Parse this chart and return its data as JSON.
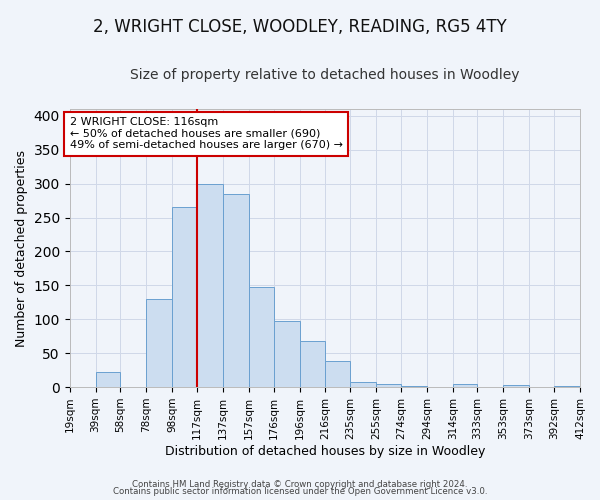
{
  "title": "2, WRIGHT CLOSE, WOODLEY, READING, RG5 4TY",
  "subtitle": "Size of property relative to detached houses in Woodley",
  "xlabel": "Distribution of detached houses by size in Woodley",
  "ylabel": "Number of detached properties",
  "bar_edges": [
    19,
    39,
    58,
    78,
    98,
    117,
    137,
    157,
    176,
    196,
    216,
    235,
    255,
    274,
    294,
    314,
    333,
    353,
    373,
    392,
    412
  ],
  "bar_heights": [
    0,
    22,
    0,
    130,
    265,
    300,
    285,
    147,
    98,
    68,
    38,
    8,
    5,
    2,
    0,
    4,
    0,
    3,
    0,
    1
  ],
  "tick_labels": [
    "19sqm",
    "39sqm",
    "58sqm",
    "78sqm",
    "98sqm",
    "117sqm",
    "137sqm",
    "157sqm",
    "176sqm",
    "196sqm",
    "216sqm",
    "235sqm",
    "255sqm",
    "274sqm",
    "294sqm",
    "314sqm",
    "333sqm",
    "353sqm",
    "373sqm",
    "392sqm",
    "412sqm"
  ],
  "bar_facecolor": "#ccddf0",
  "bar_edgecolor": "#6aa0d0",
  "grid_color": "#d0d8e8",
  "background_color": "#f0f4fa",
  "vline_x": 117,
  "vline_color": "#cc0000",
  "vline_lw": 1.5,
  "annotation_text": "2 WRIGHT CLOSE: 116sqm\n← 50% of detached houses are smaller (690)\n49% of semi-detached houses are larger (670) →",
  "annotation_box_edgecolor": "#cc0000",
  "annotation_box_facecolor": "#ffffff",
  "ylim": [
    0,
    410
  ],
  "yticks": [
    0,
    50,
    100,
    150,
    200,
    250,
    300,
    350,
    400
  ],
  "footnote1": "Contains HM Land Registry data © Crown copyright and database right 2024.",
  "footnote2": "Contains public sector information licensed under the Open Government Licence v3.0.",
  "title_fontsize": 12,
  "subtitle_fontsize": 10,
  "tick_fontsize": 7.5,
  "ylabel_fontsize": 9,
  "xlabel_fontsize": 9,
  "annotation_fontsize": 8
}
